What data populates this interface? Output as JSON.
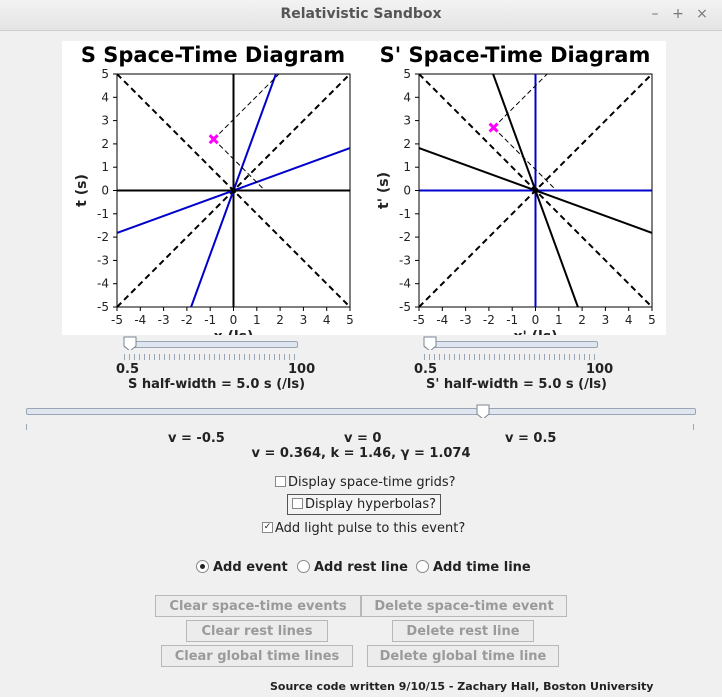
{
  "window": {
    "title": "Relativistic Sandbox",
    "min_icon": "–",
    "max_icon": "+",
    "close_icon": "×"
  },
  "plots": {
    "s": {
      "title": "S Space-Time Diagram",
      "xlabel": "x (ls)",
      "ylabel": "t (s)"
    },
    "sp": {
      "title": "S' Space-Time Diagram",
      "xlabel": "x' (ls)",
      "ylabel": "t' (s)"
    },
    "x_ticks": [
      "-5",
      "-4",
      "-3",
      "-2",
      "-1",
      "0",
      "1",
      "2",
      "3",
      "4",
      "5"
    ],
    "y_ticks": [
      "5",
      "4",
      "3",
      "2",
      "1",
      "0",
      "-1",
      "-2",
      "-3",
      "-4",
      "-5"
    ]
  },
  "sliders": {
    "s_halfwidth": {
      "min_label": "0.5",
      "max_label": "100",
      "label": "S half-width = 5.0 s (/ls)"
    },
    "sp_halfwidth": {
      "min_label": "0.5",
      "max_label": "100",
      "label": "S' half-width = 5.0 s (/ls)"
    },
    "velocity": {
      "labels": [
        "v = -0.5",
        "v = 0",
        "v = 0.5"
      ],
      "value": 0.364,
      "readout": "v =  0.364, k =  1.46, γ =  1.074"
    }
  },
  "options": {
    "grids": {
      "label": "Display space-time grids?",
      "checked": false
    },
    "hyperbolas": {
      "label": "Display hyperbolas?",
      "checked": false
    },
    "light_pulse": {
      "label": "Add light pulse to this event?",
      "checked": true
    }
  },
  "modes": [
    {
      "label": "Add event",
      "selected": true
    },
    {
      "label": "Add rest line",
      "selected": false
    },
    {
      "label": "Add time line",
      "selected": false
    }
  ],
  "buttons": {
    "clear_events": "Clear space-time events",
    "delete_event": "Delete space-time event",
    "clear_rest": "Clear rest lines",
    "delete_rest": "Delete rest line",
    "clear_time": "Clear global time lines",
    "delete_time": "Delete global time line"
  },
  "footer": "Source code written 9/10/15 - Zachary Hall, Boston University",
  "colors": {
    "event": "#ff00ff",
    "worldline": "#0000cc",
    "axis": "#000000"
  }
}
